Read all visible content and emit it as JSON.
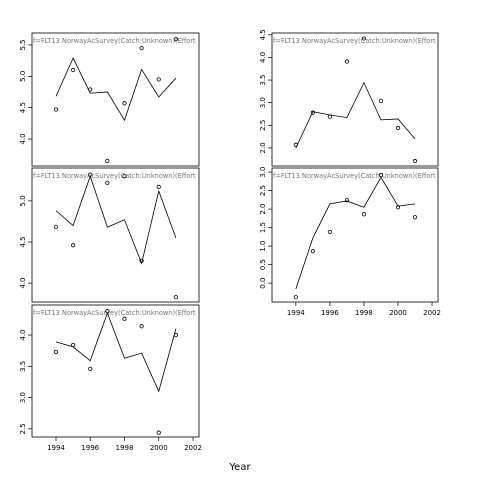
{
  "xlabel": "Year",
  "chart_data": [
    {
      "type": "line",
      "title": "f=FLT13:NorwayAcSurvey(Catch:Unknown)(Effort",
      "x": [
        1994,
        1995,
        1996,
        1997,
        1998,
        1999,
        2000,
        2001
      ],
      "series": [
        {
          "marker": "circle",
          "color": "#000000",
          "values": [
            4.47,
            5.1,
            4.79,
            3.65,
            4.57,
            5.45,
            4.95,
            5.59
          ]
        },
        {
          "marker": "none",
          "color": "#000000",
          "values": [
            4.68,
            5.29,
            4.73,
            4.75,
            4.3,
            5.11,
            4.67,
            4.97
          ]
        }
      ],
      "xlim": [
        1992.6,
        2002.35
      ],
      "ylim": [
        3.57,
        5.69
      ],
      "yticks": [
        {
          "value": 4,
          "label": "4.0"
        },
        4.5,
        {
          "value": 5,
          "label": "5.0"
        },
        5.5
      ]
    },
    {
      "type": "line",
      "title": "f=FLT13:NorwayAcSurvey(Catch:Unknown)(Effort",
      "x": [
        1994,
        1995,
        1996,
        1997,
        1998,
        1999,
        2000,
        2001
      ],
      "series": [
        {
          "marker": "circle",
          "color": "#000000",
          "values": [
            4.68,
            4.46,
            5.32,
            5.22,
            5.3,
            4.27,
            5.17,
            3.83
          ]
        },
        {
          "marker": "none",
          "color": "#000000",
          "values": [
            4.88,
            4.7,
            5.3,
            4.68,
            4.77,
            4.24,
            5.12,
            4.55
          ]
        }
      ],
      "xlim": [
        1992.6,
        2002.35
      ],
      "ylim": [
        3.77,
        5.4
      ],
      "yticks": [
        {
          "value": 4,
          "label": "4.0"
        },
        4.5,
        {
          "value": 5,
          "label": "5.0"
        }
      ]
    },
    {
      "type": "line",
      "title": "f=FLT13:NorwayAcSurvey(Catch:Unknown)(Effort",
      "x": [
        1994,
        1995,
        1996,
        1997,
        1998,
        1999,
        2000,
        2001
      ],
      "series": [
        {
          "marker": "circle",
          "color": "#000000",
          "values": [
            3.73,
            3.84,
            3.46,
            4.38,
            4.26,
            4.14,
            2.44,
            4.0
          ]
        },
        {
          "marker": "none",
          "color": "#000000",
          "values": [
            3.89,
            3.81,
            3.59,
            4.35,
            3.63,
            3.71,
            3.1,
            4.1
          ]
        }
      ],
      "xlim": [
        1992.6,
        2002.35
      ],
      "ylim": [
        2.37,
        4.48
      ],
      "xticks": [
        1994,
        1996,
        1998,
        2000,
        2002
      ],
      "yticks": [
        2.5,
        {
          "value": 3,
          "label": "3.0"
        },
        3.5,
        {
          "value": 4,
          "label": "4.0"
        }
      ]
    },
    {
      "type": "line",
      "title": "f=FLT13:NorwayAcSurvey(Catch:Unknown)(Effort",
      "x": [
        1994,
        1995,
        1996,
        1997,
        1998,
        1999,
        2000,
        2001
      ],
      "series": [
        {
          "marker": "circle",
          "color": "#000000",
          "values": [
            2.07,
            2.78,
            2.69,
            3.91,
            4.42,
            3.04,
            2.44,
            1.71
          ]
        },
        {
          "marker": "none",
          "color": "#000000",
          "values": [
            2.0,
            2.8,
            2.73,
            2.67,
            3.44,
            2.62,
            2.64,
            2.2
          ]
        }
      ],
      "xlim": [
        1992.6,
        2002.35
      ],
      "ylim": [
        1.6,
        4.54
      ],
      "yticks": [
        {
          "value": 2,
          "label": "2.0"
        },
        2.5,
        {
          "value": 3,
          "label": "3.0"
        },
        3.5,
        {
          "value": 4,
          "label": "4.0"
        },
        4.5
      ]
    },
    {
      "type": "line",
      "title": "f=FLT13:NorwayAcSurvey(Catch:Unknown)(Effort",
      "x": [
        1994,
        1995,
        1996,
        1997,
        1998,
        1999,
        2000,
        2001
      ],
      "series": [
        {
          "marker": "circle",
          "color": "#000000",
          "values": [
            -0.38,
            0.86,
            1.38,
            2.24,
            1.86,
            2.92,
            2.05,
            1.78
          ]
        },
        {
          "marker": "none",
          "color": "#000000",
          "values": [
            -0.16,
            1.22,
            2.14,
            2.22,
            2.05,
            2.86,
            2.08,
            2.14
          ]
        }
      ],
      "xlim": [
        1992.6,
        2002.35
      ],
      "ylim": [
        -0.51,
        3.11
      ],
      "xticks": [
        1994,
        1996,
        1998,
        2000,
        2002
      ],
      "yticks": [
        {
          "value": 0,
          "label": "0.0"
        },
        0.5,
        {
          "value": 1,
          "label": "1.0"
        },
        1.5,
        {
          "value": 2,
          "label": "2.0"
        },
        2.5,
        {
          "value": 3,
          "label": "3.0"
        }
      ]
    }
  ]
}
